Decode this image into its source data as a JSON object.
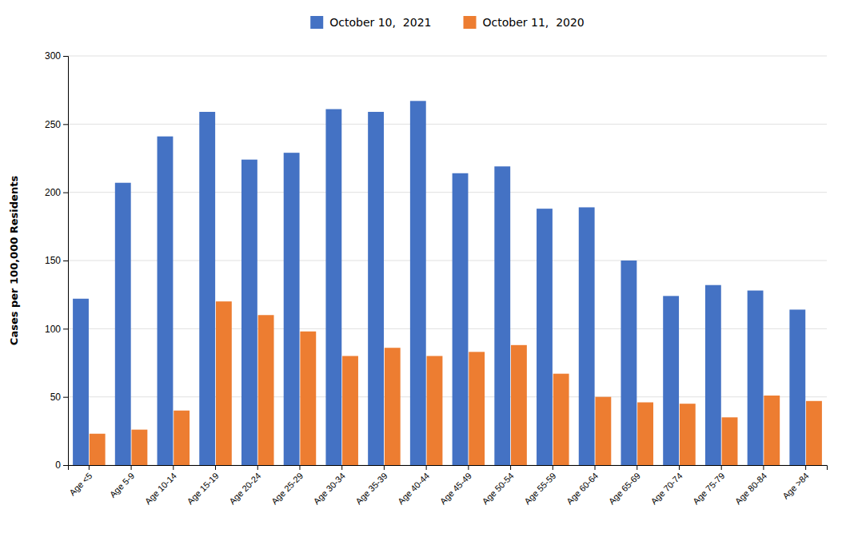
{
  "chart_data": {
    "type": "bar",
    "ylabel": "Cases per 100,000 Residents",
    "categories": [
      "Age <5",
      "Age 5-9",
      "Age 10-14",
      "Age 15-19",
      "Age 20-24",
      "Age 25-29",
      "Age 30-34",
      "Age 35-39",
      "Age 40-44",
      "Age 45-49",
      "Age 50-54",
      "Age 55-59",
      "Age 60-64",
      "Age 65-69",
      "Age 70-74",
      "Age 75-79",
      "Age 80-84",
      "Age >84"
    ],
    "series": [
      {
        "name": "October 10,  2021",
        "color": "#4472C4",
        "values": [
          122,
          207,
          241,
          259,
          224,
          229,
          261,
          259,
          267,
          214,
          219,
          188,
          189,
          150,
          124,
          132,
          128,
          114
        ]
      },
      {
        "name": "October 11,  2020",
        "color": "#ED7D31",
        "values": [
          23,
          26,
          40,
          120,
          110,
          98,
          80,
          86,
          80,
          83,
          88,
          67,
          50,
          46,
          45,
          35,
          51,
          47
        ]
      }
    ],
    "ylim": [
      0,
      300
    ],
    "yticks": [
      0,
      50,
      100,
      150,
      200,
      250,
      300
    ],
    "grid": true,
    "legend": "top"
  }
}
